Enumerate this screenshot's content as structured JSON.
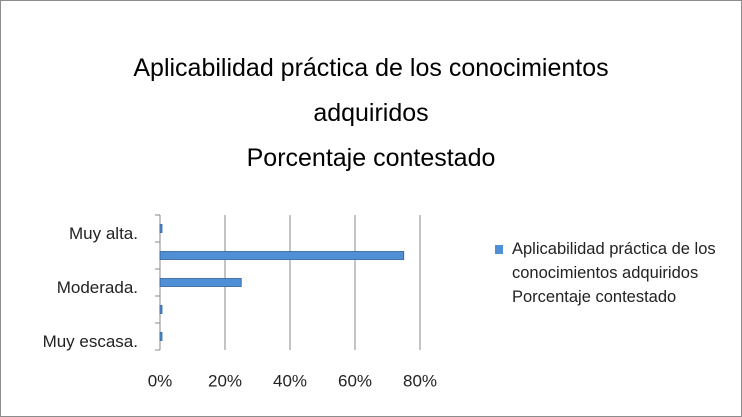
{
  "chart_data": {
    "type": "bar",
    "orientation": "horizontal",
    "title": "Aplicabilidad práctica de los conocimientos adquiridos",
    "subtitle": "Porcentaje contestado",
    "categories": [
      "Muy alta.",
      null,
      "Moderada.",
      null,
      "Muy escasa."
    ],
    "series": [
      {
        "name": "Aplicabilidad práctica de los conocimientos adquiridos Porcentaje contestado",
        "color": "#4f8fd6",
        "values": [
          0,
          75,
          25,
          0,
          0
        ]
      }
    ],
    "xlim": [
      0,
      80
    ],
    "xticks": [
      {
        "value": 0,
        "label": "0%"
      },
      {
        "value": 20,
        "label": "20%"
      },
      {
        "value": 40,
        "label": "40%"
      },
      {
        "value": 60,
        "label": "60%"
      },
      {
        "value": 80,
        "label": "80%"
      }
    ],
    "grid": true,
    "legend": "right"
  }
}
